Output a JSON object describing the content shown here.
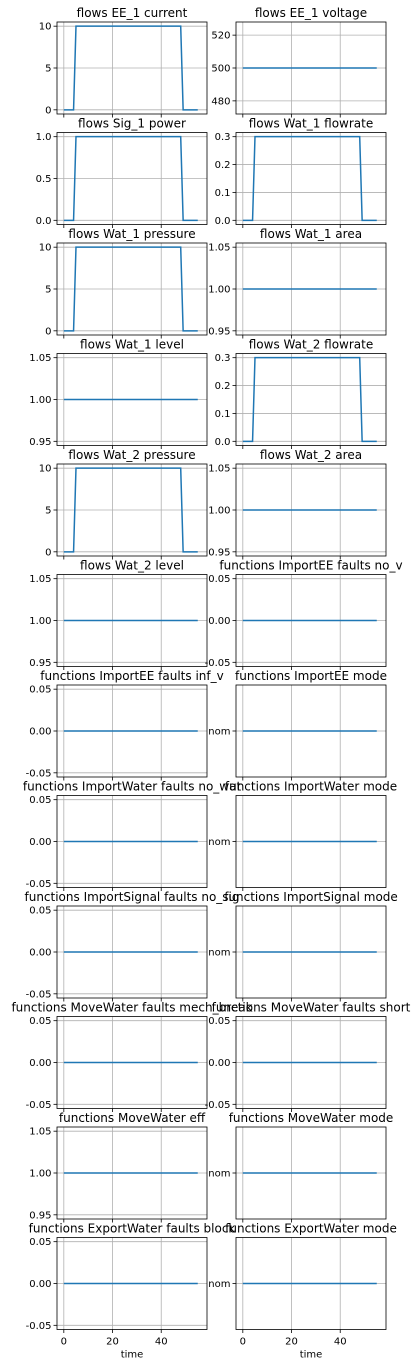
{
  "xlabel": "time",
  "x_ticks": [
    0,
    20,
    40
  ],
  "xlim": [
    -2.8,
    58.8
  ],
  "step_x": [
    0,
    4,
    5,
    6,
    48,
    49,
    50,
    55
  ],
  "flat_x": [
    0,
    55
  ],
  "chart_data": [
    {
      "type": "line",
      "title": "flows EE_1 current",
      "x": [
        0,
        4,
        5,
        48,
        49,
        55
      ],
      "y": [
        0,
        0,
        10,
        10,
        0,
        0
      ],
      "ylim": [
        -0.5,
        10.5
      ],
      "yticks": [
        0,
        5,
        10
      ],
      "ytick_labels": [
        "0",
        "5",
        "10"
      ],
      "show_xticklabels": false
    },
    {
      "type": "line",
      "title": "flows EE_1 voltage",
      "x": [
        0,
        55
      ],
      "y": [
        500,
        500
      ],
      "ylim": [
        472,
        528
      ],
      "yticks": [
        480,
        500,
        520
      ],
      "ytick_labels": [
        "480",
        "500",
        "520"
      ],
      "show_xticklabels": false
    },
    {
      "type": "line",
      "title": "flows Sig_1 power",
      "x": [
        0,
        4,
        5,
        48,
        49,
        55
      ],
      "y": [
        0,
        0,
        1,
        1,
        0,
        0
      ],
      "ylim": [
        -0.05,
        1.05
      ],
      "yticks": [
        0,
        0.5,
        1
      ],
      "ytick_labels": [
        "0.0",
        "0.5",
        "1.0"
      ],
      "show_xticklabels": false
    },
    {
      "type": "line",
      "title": "flows Wat_1 flowrate",
      "x": [
        0,
        4,
        5,
        48,
        49,
        55
      ],
      "y": [
        0,
        0,
        0.3,
        0.3,
        0,
        0
      ],
      "ylim": [
        -0.015,
        0.315
      ],
      "yticks": [
        0,
        0.1,
        0.2,
        0.3
      ],
      "ytick_labels": [
        "0.0",
        "0.1",
        "0.2",
        "0.3"
      ],
      "show_xticklabels": false
    },
    {
      "type": "line",
      "title": "flows Wat_1 pressure",
      "x": [
        0,
        4,
        5,
        48,
        49,
        55
      ],
      "y": [
        0,
        0,
        10,
        10,
        0,
        0
      ],
      "ylim": [
        -0.5,
        10.5
      ],
      "yticks": [
        0,
        5,
        10
      ],
      "ytick_labels": [
        "0",
        "5",
        "10"
      ],
      "show_xticklabels": false
    },
    {
      "type": "line",
      "title": "flows Wat_1 area",
      "x": [
        0,
        55
      ],
      "y": [
        1,
        1
      ],
      "ylim": [
        0.945,
        1.055
      ],
      "yticks": [
        0.95,
        1,
        1.05
      ],
      "ytick_labels": [
        "0.95",
        "1.00",
        "1.05"
      ],
      "show_xticklabels": false
    },
    {
      "type": "line",
      "title": "flows Wat_1 level",
      "x": [
        0,
        55
      ],
      "y": [
        1,
        1
      ],
      "ylim": [
        0.945,
        1.055
      ],
      "yticks": [
        0.95,
        1,
        1.05
      ],
      "ytick_labels": [
        "0.95",
        "1.00",
        "1.05"
      ],
      "show_xticklabels": false
    },
    {
      "type": "line",
      "title": "flows Wat_2 flowrate",
      "x": [
        0,
        4,
        5,
        48,
        49,
        55
      ],
      "y": [
        0,
        0,
        0.3,
        0.3,
        0,
        0
      ],
      "ylim": [
        -0.015,
        0.315
      ],
      "yticks": [
        0,
        0.1,
        0.2,
        0.3
      ],
      "ytick_labels": [
        "0.0",
        "0.1",
        "0.2",
        "0.3"
      ],
      "show_xticklabels": false
    },
    {
      "type": "line",
      "title": "flows Wat_2 pressure",
      "x": [
        0,
        4,
        5,
        48,
        49,
        55
      ],
      "y": [
        0,
        0,
        10,
        10,
        0,
        0
      ],
      "ylim": [
        -0.5,
        10.5
      ],
      "yticks": [
        0,
        5,
        10
      ],
      "ytick_labels": [
        "0",
        "5",
        "10"
      ],
      "show_xticklabels": false
    },
    {
      "type": "line",
      "title": "flows Wat_2 area",
      "x": [
        0,
        55
      ],
      "y": [
        1,
        1
      ],
      "ylim": [
        0.945,
        1.055
      ],
      "yticks": [
        0.95,
        1,
        1.05
      ],
      "ytick_labels": [
        "0.95",
        "1.00",
        "1.05"
      ],
      "show_xticklabels": false
    },
    {
      "type": "line",
      "title": "flows Wat_2 level",
      "x": [
        0,
        55
      ],
      "y": [
        1,
        1
      ],
      "ylim": [
        0.945,
        1.055
      ],
      "yticks": [
        0.95,
        1,
        1.05
      ],
      "ytick_labels": [
        "0.95",
        "1.00",
        "1.05"
      ],
      "show_xticklabels": false
    },
    {
      "type": "line",
      "title": "functions ImportEE faults no_v",
      "x": [
        0,
        55
      ],
      "y": [
        0,
        0
      ],
      "ylim": [
        -0.055,
        0.055
      ],
      "yticks": [
        -0.05,
        0,
        0.05
      ],
      "ytick_labels": [
        "-0.05",
        "0.00",
        "0.05"
      ],
      "show_xticklabels": false
    },
    {
      "type": "line",
      "title": "functions ImportEE faults inf_v",
      "x": [
        0,
        55
      ],
      "y": [
        0,
        0
      ],
      "ylim": [
        -0.055,
        0.055
      ],
      "yticks": [
        -0.05,
        0,
        0.05
      ],
      "ytick_labels": [
        "-0.05",
        "0.00",
        "0.05"
      ],
      "show_xticklabels": false
    },
    {
      "type": "line",
      "title": "functions ImportEE mode",
      "x": [
        0,
        55
      ],
      "y": [
        0,
        0
      ],
      "ylim": [
        -0.055,
        0.055
      ],
      "yticks": [
        0
      ],
      "ytick_labels": [
        "nom"
      ],
      "show_xticklabels": false
    },
    {
      "type": "line",
      "title": "functions ImportWater faults no_wat",
      "x": [
        0,
        55
      ],
      "y": [
        0,
        0
      ],
      "ylim": [
        -0.055,
        0.055
      ],
      "yticks": [
        -0.05,
        0,
        0.05
      ],
      "ytick_labels": [
        "-0.05",
        "0.00",
        "0.05"
      ],
      "show_xticklabels": false
    },
    {
      "type": "line",
      "title": "functions ImportWater mode",
      "x": [
        0,
        55
      ],
      "y": [
        0,
        0
      ],
      "ylim": [
        -0.055,
        0.055
      ],
      "yticks": [
        0
      ],
      "ytick_labels": [
        "nom"
      ],
      "show_xticklabels": false
    },
    {
      "type": "line",
      "title": "functions ImportSignal faults no_sig",
      "x": [
        0,
        55
      ],
      "y": [
        0,
        0
      ],
      "ylim": [
        -0.055,
        0.055
      ],
      "yticks": [
        -0.05,
        0,
        0.05
      ],
      "ytick_labels": [
        "-0.05",
        "0.00",
        "0.05"
      ],
      "show_xticklabels": false
    },
    {
      "type": "line",
      "title": "functions ImportSignal mode",
      "x": [
        0,
        55
      ],
      "y": [
        0,
        0
      ],
      "ylim": [
        -0.055,
        0.055
      ],
      "yticks": [
        0
      ],
      "ytick_labels": [
        "nom"
      ],
      "show_xticklabels": false
    },
    {
      "type": "line",
      "title": "functions MoveWater faults mech_break",
      "x": [
        0,
        55
      ],
      "y": [
        0,
        0
      ],
      "ylim": [
        -0.055,
        0.055
      ],
      "yticks": [
        -0.05,
        0,
        0.05
      ],
      "ytick_labels": [
        "-0.05",
        "0.00",
        "0.05"
      ],
      "show_xticklabels": false
    },
    {
      "type": "line",
      "title": "functions MoveWater faults short",
      "x": [
        0,
        55
      ],
      "y": [
        0,
        0
      ],
      "ylim": [
        -0.055,
        0.055
      ],
      "yticks": [
        -0.05,
        0,
        0.05
      ],
      "ytick_labels": [
        "-0.05",
        "0.00",
        "0.05"
      ],
      "show_xticklabels": false
    },
    {
      "type": "line",
      "title": "functions MoveWater eff",
      "x": [
        0,
        55
      ],
      "y": [
        1,
        1
      ],
      "ylim": [
        0.945,
        1.055
      ],
      "yticks": [
        0.95,
        1,
        1.05
      ],
      "ytick_labels": [
        "0.95",
        "1.00",
        "1.05"
      ],
      "show_xticklabels": false
    },
    {
      "type": "line",
      "title": "functions MoveWater mode",
      "x": [
        0,
        55
      ],
      "y": [
        0,
        0
      ],
      "ylim": [
        -0.055,
        0.055
      ],
      "yticks": [
        0
      ],
      "ytick_labels": [
        "nom"
      ],
      "show_xticklabels": false
    },
    {
      "type": "line",
      "title": "functions ExportWater faults block",
      "x": [
        0,
        55
      ],
      "y": [
        0,
        0
      ],
      "ylim": [
        -0.055,
        0.055
      ],
      "yticks": [
        -0.05,
        0,
        0.05
      ],
      "ytick_labels": [
        "-0.05",
        "0.00",
        "0.05"
      ],
      "show_xticklabels": true,
      "xlabel": "time"
    },
    {
      "type": "line",
      "title": "functions ExportWater mode",
      "x": [
        0,
        55
      ],
      "y": [
        0,
        0
      ],
      "ylim": [
        -0.055,
        0.055
      ],
      "yticks": [
        0
      ],
      "ytick_labels": [
        "nom"
      ],
      "show_xticklabels": true,
      "xlabel": "time"
    }
  ],
  "series_color": "#1f77b4",
  "grid": true
}
